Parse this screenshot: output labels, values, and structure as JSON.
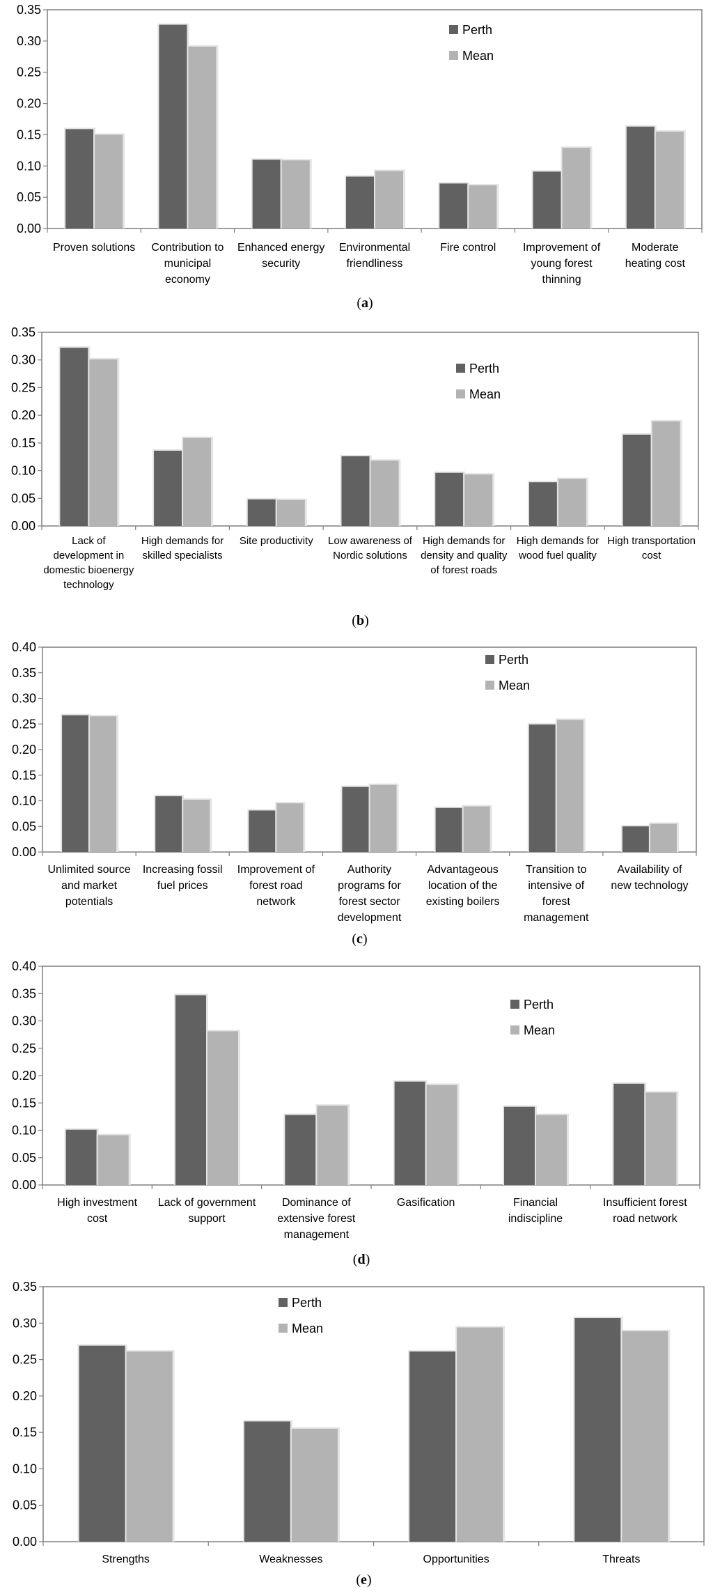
{
  "colors": {
    "perth": "#616161",
    "mean": "#b3b3b3",
    "shadow": "#e4e4e4",
    "axis": "#7f7f7f"
  },
  "chart_data": [
    {
      "panel": "a",
      "caption": "(a)",
      "type": "bar",
      "ylim": [
        0,
        0.35
      ],
      "yticks": [
        "0.00",
        "0.05",
        "0.10",
        "0.15",
        "0.20",
        "0.25",
        "0.30",
        "0.35"
      ],
      "legend": [
        "Perth",
        "Mean"
      ],
      "categories": [
        [
          "Proven solutions"
        ],
        [
          "Contribution to",
          "municipal",
          "economy"
        ],
        [
          "Enhanced energy",
          "security"
        ],
        [
          "Environmental",
          "friendliness"
        ],
        [
          "Fire control"
        ],
        [
          "Improvement of",
          "young forest",
          "thinning"
        ],
        [
          "Moderate",
          "heating cost"
        ]
      ],
      "series": [
        {
          "name": "Perth",
          "values": [
            0.159,
            0.326,
            0.11,
            0.083,
            0.072,
            0.091,
            0.163
          ]
        },
        {
          "name": "Mean",
          "values": [
            0.15,
            0.291,
            0.109,
            0.092,
            0.069,
            0.129,
            0.155
          ]
        }
      ]
    },
    {
      "panel": "b",
      "caption": "(b)",
      "type": "bar",
      "ylim": [
        0,
        0.35
      ],
      "yticks": [
        "0.00",
        "0.05",
        "0.10",
        "0.15",
        "0.20",
        "0.25",
        "0.30",
        "0.35"
      ],
      "legend": [
        "Perth",
        "Mean"
      ],
      "categories": [
        [
          "Lack of",
          "development in",
          "domestic bioenergy",
          "technology"
        ],
        [
          "High demands for",
          "skilled specialists"
        ],
        [
          "Site productivity"
        ],
        [
          "Low awareness of",
          "Nordic solutions"
        ],
        [
          "High demands for",
          "density and quality",
          "of forest roads"
        ],
        [
          "High demands for",
          "wood fuel quality"
        ],
        [
          "High transportation",
          "cost"
        ]
      ],
      "series": [
        {
          "name": "Perth",
          "values": [
            0.322,
            0.136,
            0.048,
            0.126,
            0.096,
            0.079,
            0.165
          ]
        },
        {
          "name": "Mean",
          "values": [
            0.301,
            0.159,
            0.047,
            0.118,
            0.093,
            0.085,
            0.189
          ]
        }
      ]
    },
    {
      "panel": "c",
      "caption": "(c)",
      "type": "bar",
      "ylim": [
        0,
        0.4
      ],
      "yticks": [
        "0.00",
        "0.05",
        "0.10",
        "0.15",
        "0.20",
        "0.25",
        "0.30",
        "0.35",
        "0.40"
      ],
      "legend": [
        "Perth",
        "Mean"
      ],
      "categories": [
        [
          "Unlimited source",
          "and market",
          "potentials"
        ],
        [
          "Increasing fossil",
          "fuel prices"
        ],
        [
          "Improvement of",
          "forest road",
          "network"
        ],
        [
          "Authority",
          "programs for",
          "forest sector",
          "development"
        ],
        [
          "Advantageous",
          "location of the",
          "existing boilers"
        ],
        [
          "Transition to",
          "intensive of",
          "forest",
          "management"
        ],
        [
          "Availability of",
          "new technology"
        ]
      ],
      "series": [
        {
          "name": "Perth",
          "values": [
            0.267,
            0.109,
            0.081,
            0.127,
            0.086,
            0.249,
            0.05
          ]
        },
        {
          "name": "Mean",
          "values": [
            0.265,
            0.102,
            0.095,
            0.131,
            0.089,
            0.258,
            0.055
          ]
        }
      ]
    },
    {
      "panel": "d",
      "caption": "(d)",
      "type": "bar",
      "ylim": [
        0,
        0.4
      ],
      "yticks": [
        "0.00",
        "0.05",
        "0.10",
        "0.15",
        "0.20",
        "0.25",
        "0.30",
        "0.35",
        "0.40"
      ],
      "legend": [
        "Perth",
        "Mean"
      ],
      "categories": [
        [
          "High investment",
          "cost"
        ],
        [
          "Lack of government",
          "support"
        ],
        [
          "Dominance of",
          "extensive forest",
          "management"
        ],
        [
          "Gasification"
        ],
        [
          "Financial",
          "indiscipline"
        ],
        [
          "Insufficient forest",
          "road network"
        ]
      ],
      "series": [
        {
          "name": "Perth",
          "values": [
            0.101,
            0.347,
            0.128,
            0.189,
            0.143,
            0.185
          ]
        },
        {
          "name": "Mean",
          "values": [
            0.091,
            0.281,
            0.145,
            0.183,
            0.128,
            0.169
          ]
        }
      ]
    },
    {
      "panel": "e",
      "caption": "(e)",
      "type": "bar",
      "ylim": [
        0,
        0.35
      ],
      "yticks": [
        "0.00",
        "0.05",
        "0.10",
        "0.15",
        "0.20",
        "0.25",
        "0.30",
        "0.35"
      ],
      "legend": [
        "Perth",
        "Mean"
      ],
      "categories": [
        [
          "Strengths"
        ],
        [
          "Weaknesses"
        ],
        [
          "Opportunities"
        ],
        [
          "Threats"
        ]
      ],
      "series": [
        {
          "name": "Perth",
          "values": [
            0.269,
            0.165,
            0.261,
            0.307
          ]
        },
        {
          "name": "Mean",
          "values": [
            0.261,
            0.155,
            0.294,
            0.289
          ]
        }
      ]
    }
  ]
}
